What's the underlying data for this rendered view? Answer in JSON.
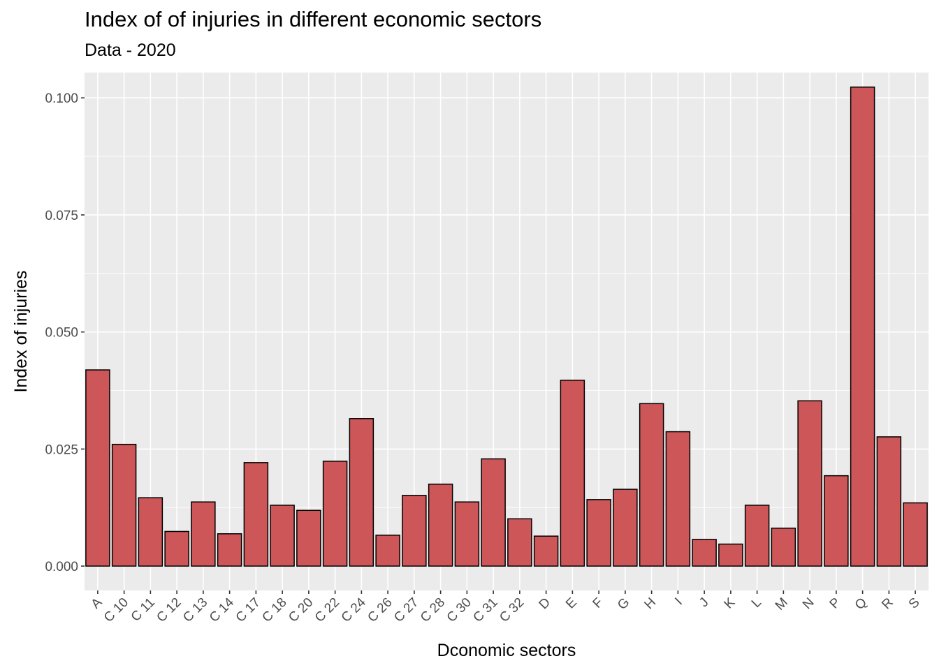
{
  "chart_data": {
    "type": "bar",
    "title": "Index of of injuries in different economic sectors",
    "subtitle": "Data - 2020",
    "xlabel": "Dconomic sectors",
    "ylabel": "Index of injuries",
    "ylim": [
      -0.0052,
      0.1054
    ],
    "yticks": [
      0.0,
      0.025,
      0.05,
      0.075,
      0.1
    ],
    "ytick_labels": [
      "0.000",
      "0.025",
      "0.050",
      "0.075",
      "0.100"
    ],
    "categories": [
      "A",
      "C 10",
      "C 11",
      "C 12",
      "C 13",
      "C 14",
      "C 17",
      "C 18",
      "C 20",
      "C 22",
      "C 24",
      "C 26",
      "C 27",
      "C 28",
      "C 30",
      "C 31",
      "C 32",
      "D",
      "E",
      "F",
      "G",
      "H",
      "I",
      "J",
      "K",
      "L",
      "M",
      "N",
      "P",
      "Q",
      "R",
      "S"
    ],
    "values": [
      0.0419,
      0.026,
      0.0146,
      0.0074,
      0.0137,
      0.0069,
      0.0221,
      0.013,
      0.0119,
      0.0224,
      0.0315,
      0.0066,
      0.0151,
      0.0175,
      0.0137,
      0.0229,
      0.0101,
      0.0064,
      0.0397,
      0.0142,
      0.0164,
      0.0347,
      0.0287,
      0.0057,
      0.0047,
      0.013,
      0.0081,
      0.0353,
      0.0193,
      0.1023,
      0.0276,
      0.0135
    ],
    "grid": true,
    "colors": {
      "bar_fill": "#cd5658",
      "bar_stroke": "#000000",
      "panel_bg": "#ebebeb",
      "grid_major": "#ffffff",
      "tick_text": "#4d4d4d"
    }
  }
}
